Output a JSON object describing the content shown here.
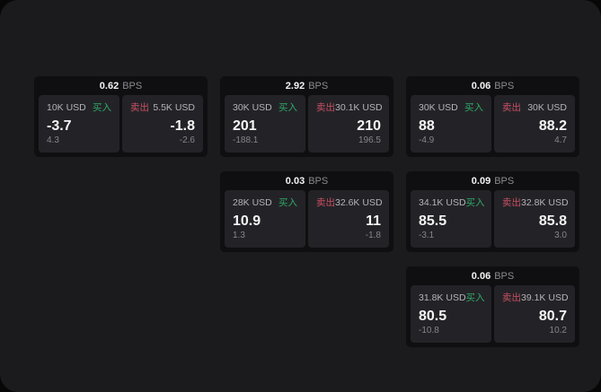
{
  "labels": {
    "bps_unit": "BPS",
    "buy": "买入",
    "sell": "卖出"
  },
  "colors": {
    "page_bg": "#1b1b1d",
    "card_bg": "#0f0f11",
    "panel_bg": "#232327",
    "buy_green": "#2fa968",
    "sell_red": "#c94f63",
    "primary_text": "#f5f5f6",
    "muted_text": "#85858a"
  },
  "cards": [
    {
      "bps": "0.62",
      "buy": {
        "size": "10K USD",
        "price": "-3.7",
        "sub": "4.3"
      },
      "sell": {
        "size": "5.5K USD",
        "price": "-1.8",
        "sub": "-2.6"
      }
    },
    {
      "bps": "2.92",
      "buy": {
        "size": "30K USD",
        "price": "201",
        "sub": "-188.1"
      },
      "sell": {
        "size": "30.1K USD",
        "price": "210",
        "sub": "196.5"
      }
    },
    {
      "bps": "0.06",
      "buy": {
        "size": "30K USD",
        "price": "88",
        "sub": "-4.9"
      },
      "sell": {
        "size": "30K USD",
        "price": "88.2",
        "sub": "4.7"
      }
    },
    {
      "bps": "0.03",
      "buy": {
        "size": "28K USD",
        "price": "10.9",
        "sub": "1.3"
      },
      "sell": {
        "size": "32.6K USD",
        "price": "11",
        "sub": "-1.8"
      }
    },
    {
      "bps": "0.09",
      "buy": {
        "size": "34.1K USD",
        "price": "85.5",
        "sub": "-3.1"
      },
      "sell": {
        "size": "32.8K USD",
        "price": "85.8",
        "sub": "3.0"
      }
    },
    {
      "bps": "0.06",
      "buy": {
        "size": "31.8K USD",
        "price": "80.5",
        "sub": "-10.8"
      },
      "sell": {
        "size": "39.1K USD",
        "price": "80.7",
        "sub": "10.2"
      }
    }
  ]
}
